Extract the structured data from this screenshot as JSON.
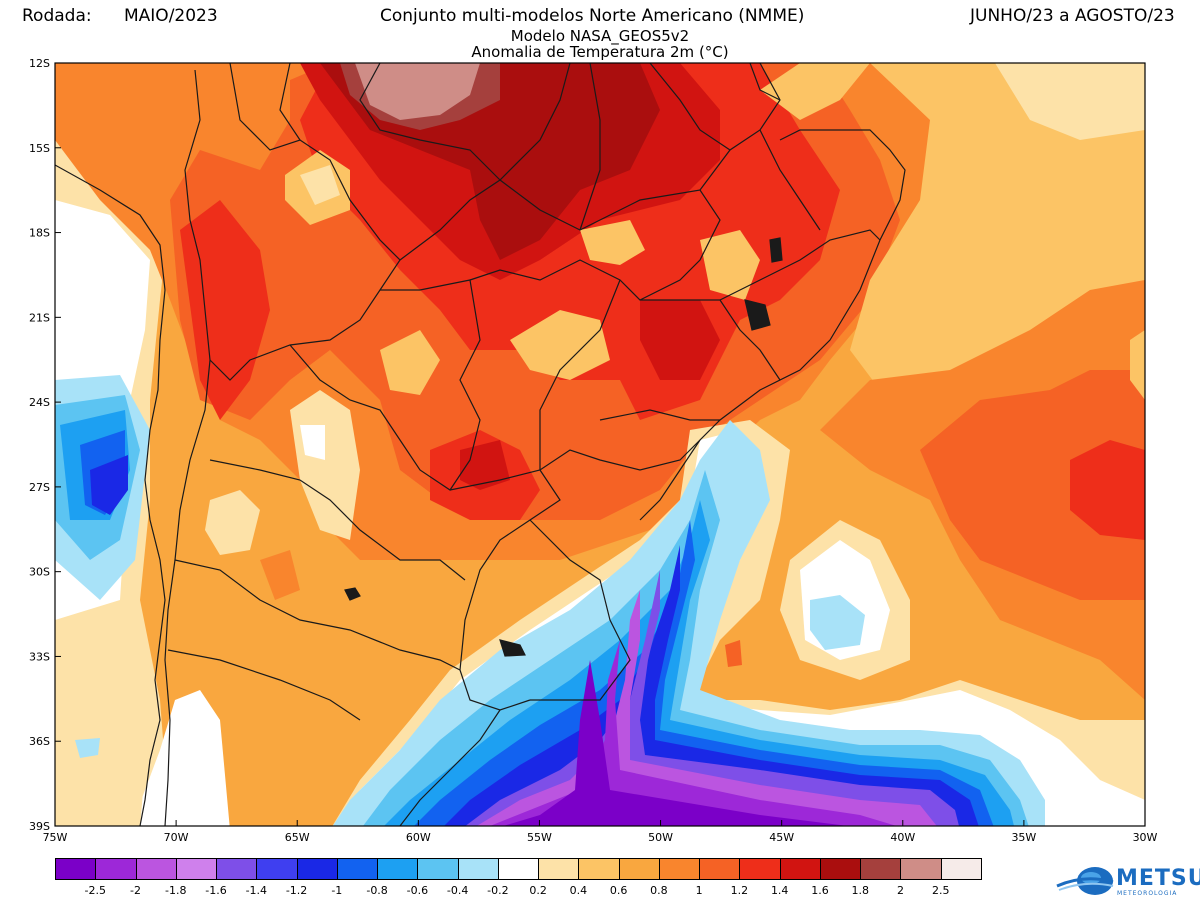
{
  "header": {
    "rodada_label": "Rodada:",
    "rodada_value": "MAIO/2023",
    "title": "Conjunto multi-modelos Norte Americano (NMME)",
    "period": "JUNHO/23 a AGOSTO/23",
    "model": "Modelo NASA_GEOS5v2",
    "variable": "Anomalia de Temperatura 2m (°C)"
  },
  "map": {
    "lat_ticks": [
      "12S",
      "15S",
      "18S",
      "21S",
      "24S",
      "27S",
      "30S",
      "33S",
      "36S",
      "39S"
    ],
    "lon_ticks": [
      "75W",
      "70W",
      "65W",
      "60W",
      "55W",
      "50W",
      "45W",
      "40W",
      "35W",
      "30W"
    ],
    "extent": {
      "lon_min": -75,
      "lon_max": -30,
      "lat_min": -39,
      "lat_max": -12
    }
  },
  "legend": {
    "colors": [
      "#7b00c8",
      "#9d28d8",
      "#bb55e0",
      "#cf80ec",
      "#7e4fe8",
      "#3f3ff0",
      "#1a28e6",
      "#1262f0",
      "#1da0f2",
      "#5cc4f2",
      "#a8e2f8",
      "#ffffff",
      "#fde2a8",
      "#fcc465",
      "#f9a73f",
      "#f9852d",
      "#f56225",
      "#ee2e1a",
      "#d11411",
      "#aa0e0e",
      "#a5403d",
      "#cf8d87",
      "#f6ebe9"
    ],
    "labels": [
      "-2.5",
      "-2",
      "-1.8",
      "-1.6",
      "-1.4",
      "-1.2",
      "-1",
      "-0.8",
      "-0.6",
      "-0.4",
      "-0.2",
      "0.2",
      "0.4",
      "0.6",
      "0.8",
      "1",
      "1.2",
      "1.4",
      "1.6",
      "1.8",
      "2",
      "2.5"
    ]
  },
  "logo": {
    "main": "METSUL",
    "sub": "METEOROLOGIA"
  }
}
